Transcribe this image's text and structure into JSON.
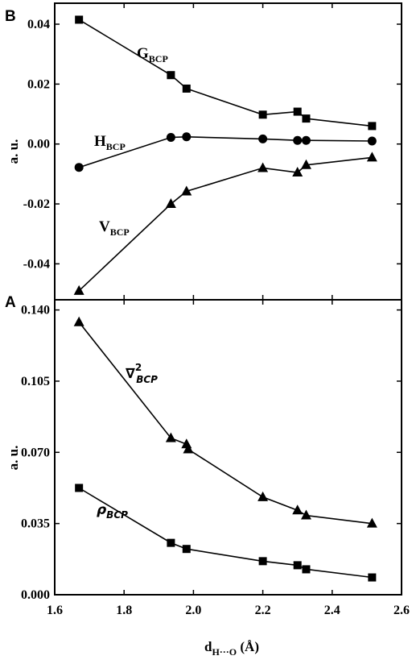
{
  "chart_data": [
    {
      "panel_label": "B",
      "type": "line",
      "ylabel": "a. u.",
      "ylim": [
        -0.052,
        0.047
      ],
      "yticks": [
        0.04,
        0.02,
        0.0,
        -0.02,
        -0.04
      ],
      "ytick_labels": [
        "0.04",
        "0.02",
        "0.00",
        "-0.02",
        "-0.04"
      ],
      "series": [
        {
          "name": "G_BCP",
          "label_main": "G",
          "label_sub": "BCP",
          "marker": "square",
          "x": [
            1.67,
            1.935,
            1.98,
            2.2,
            2.3,
            2.325,
            2.515
          ],
          "y": [
            0.0415,
            0.023,
            0.0185,
            0.0098,
            0.0108,
            0.0085,
            0.006
          ]
        },
        {
          "name": "H_BCP",
          "label_main": "H",
          "label_sub": "BCP",
          "marker": "circle",
          "x": [
            1.67,
            1.935,
            1.98,
            2.2,
            2.3,
            2.325,
            2.515
          ],
          "y": [
            -0.0078,
            0.0022,
            0.0024,
            0.0017,
            0.0012,
            0.0012,
            0.001
          ]
        },
        {
          "name": "V_BCP",
          "label_main": "V",
          "label_sub": "BCP",
          "marker": "triangle",
          "x": [
            1.67,
            1.935,
            1.98,
            2.2,
            2.3,
            2.325,
            2.515
          ],
          "y": [
            -0.049,
            -0.02,
            -0.0158,
            -0.008,
            -0.0095,
            -0.007,
            -0.0045
          ]
        }
      ]
    },
    {
      "panel_label": "A",
      "type": "line",
      "ylabel": "a. u.",
      "xlabel_main": "d",
      "xlabel_sub": "H···O",
      "xlabel_unit": " (Å)",
      "xlim": [
        1.6,
        2.6
      ],
      "xticks": [
        1.6,
        1.8,
        2.0,
        2.2,
        2.4,
        2.6
      ],
      "xtick_labels": [
        "1.6",
        "1.8",
        "2.0",
        "2.2",
        "2.4",
        "2.6"
      ],
      "ylim": [
        0.0,
        0.145
      ],
      "yticks": [
        0.14,
        0.105,
        0.07,
        0.035,
        0.0
      ],
      "ytick_labels": [
        "0.140",
        "0.105",
        "0.070",
        "0.035",
        "0.000"
      ],
      "series": [
        {
          "name": "∇²_BCP",
          "label_main": "∇",
          "label_sup": "2",
          "label_sub": "BCP",
          "marker": "triangle",
          "x": [
            1.67,
            1.935,
            1.98,
            1.985,
            2.2,
            2.3,
            2.325,
            2.515
          ],
          "y": [
            0.134,
            0.077,
            0.074,
            0.0715,
            0.048,
            0.0415,
            0.039,
            0.035
          ]
        },
        {
          "name": "ρ_BCP",
          "label_main": "ρ",
          "label_sub": "BCP",
          "marker": "square",
          "x": [
            1.67,
            1.935,
            1.98,
            2.2,
            2.3,
            2.325,
            2.515
          ],
          "y": [
            0.0525,
            0.0255,
            0.0225,
            0.0165,
            0.0145,
            0.0125,
            0.0085
          ]
        }
      ]
    }
  ]
}
